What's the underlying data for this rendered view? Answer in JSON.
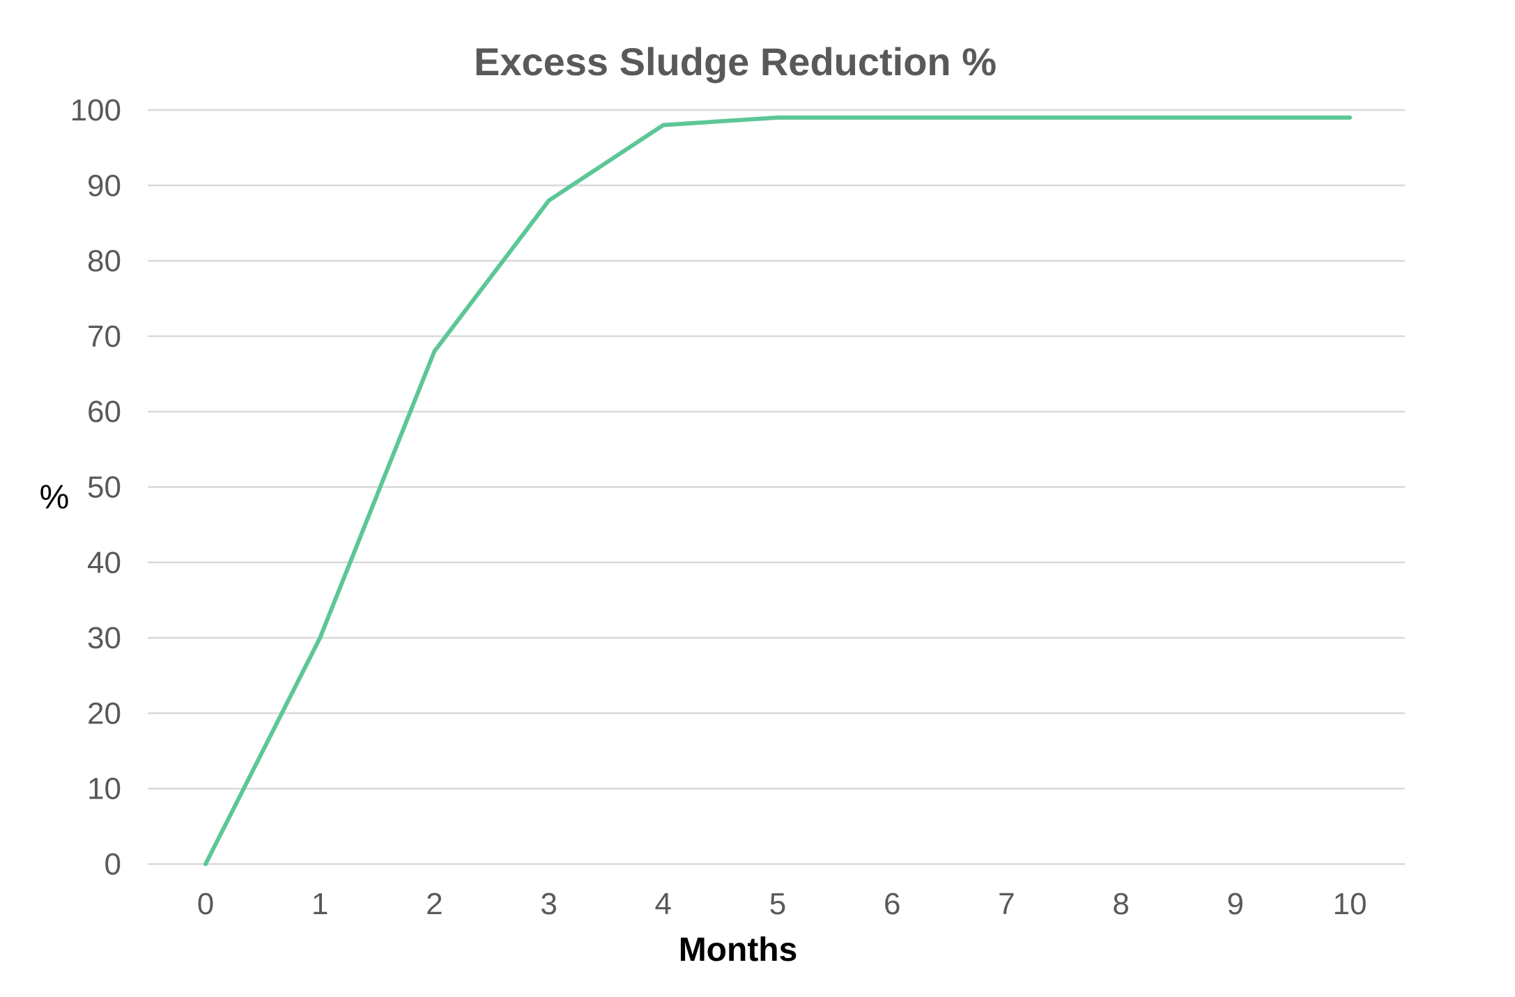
{
  "chart_data": {
    "type": "line",
    "title": "Excess Sludge Reduction %",
    "xlabel": "Months",
    "ylabel": "%",
    "x": [
      0,
      1,
      2,
      3,
      4,
      5,
      6,
      7,
      8,
      9,
      10
    ],
    "x_tick_labels": [
      "0",
      "1",
      "2",
      "3",
      "4",
      "5",
      "6",
      "7",
      "8",
      "9",
      "10"
    ],
    "y_tick_labels": [
      "0",
      "10",
      "20",
      "30",
      "40",
      "50",
      "60",
      "70",
      "80",
      "90",
      "100"
    ],
    "series": [
      {
        "values": [
          0,
          30,
          68,
          88,
          98,
          99,
          99,
          99,
          99,
          99,
          99
        ],
        "color": "#5cc796"
      }
    ],
    "xlim": [
      0,
      10
    ],
    "ylim": [
      0,
      100
    ],
    "grid": true,
    "legend": "none"
  }
}
